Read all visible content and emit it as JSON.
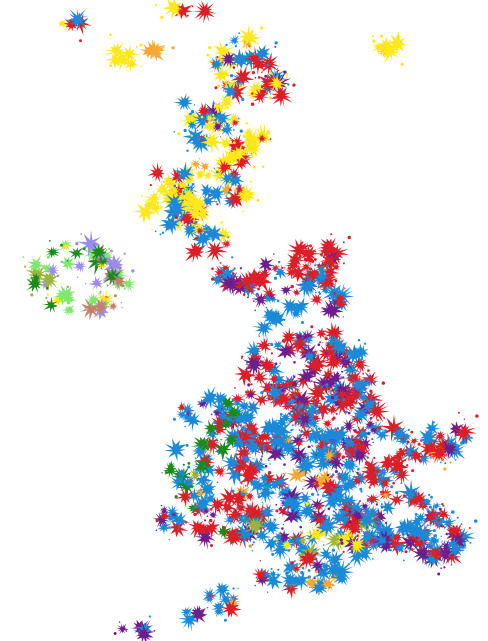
{
  "map": {
    "background": "#ffffff",
    "party_colors": {
      "yellow": "#ffe81a",
      "orange": "#f6a832",
      "red": "#dc1e28",
      "blue": "#1a8ad8",
      "purple": "#6e1e8c",
      "green": "#1a8a1a",
      "lightgreen": "#7ee86e",
      "lavender": "#9c8cf0",
      "brown": "#c08270",
      "gray": "#7c7c7c",
      "olive": "#9cb43a"
    }
  }
}
